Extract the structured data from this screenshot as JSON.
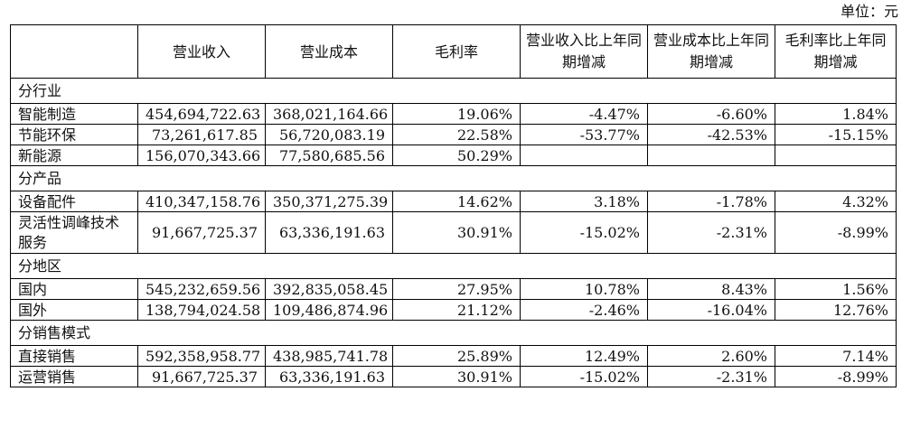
{
  "unit_label": "单位：元",
  "headers": [
    "",
    "营业收入",
    "营业成本",
    "毛利率",
    "营业收入比上年同期增减",
    "营业成本比上年同期增减",
    "毛利率比上年同期增减"
  ],
  "sections": [
    {
      "title": "分行业",
      "rows": [
        {
          "label": "智能制造",
          "values": [
            "454,694,722.63",
            "368,021,164.66",
            "19.06%",
            "-4.47%",
            "-6.60%",
            "1.84%"
          ]
        },
        {
          "label": "节能环保",
          "values": [
            "73,261,617.85",
            "56,720,083.19",
            "22.58%",
            "-53.77%",
            "-42.53%",
            "-15.15%"
          ]
        },
        {
          "label": "新能源",
          "values": [
            "156,070,343.66",
            "77,580,685.56",
            "50.29%",
            "",
            "",
            ""
          ]
        }
      ]
    },
    {
      "title": "分产品",
      "rows": [
        {
          "label": "设备配件",
          "values": [
            "410,347,158.76",
            "350,371,275.39",
            "14.62%",
            "3.18%",
            "-1.78%",
            "4.32%"
          ]
        },
        {
          "label": "灵活性调峰技术服务",
          "values": [
            "91,667,725.37",
            "63,336,191.63",
            "30.91%",
            "-15.02%",
            "-2.31%",
            "-8.99%"
          ],
          "tall": true
        }
      ]
    },
    {
      "title": "分地区",
      "rows": [
        {
          "label": "国内",
          "values": [
            "545,232,659.56",
            "392,835,058.45",
            "27.95%",
            "10.78%",
            "8.43%",
            "1.56%"
          ]
        },
        {
          "label": "国外",
          "values": [
            "138,794,024.58",
            "109,486,874.96",
            "21.12%",
            "-2.46%",
            "-16.04%",
            "12.76%"
          ]
        }
      ]
    },
    {
      "title": "分销售模式",
      "rows": [
        {
          "label": "直接销售",
          "values": [
            "592,358,958.77",
            "438,985,741.78",
            "25.89%",
            "12.49%",
            "2.60%",
            "7.14%"
          ]
        },
        {
          "label": "运营销售",
          "values": [
            "91,667,725.37",
            "63,336,191.63",
            "30.91%",
            "-15.02%",
            "-2.31%",
            "-8.99%"
          ]
        }
      ]
    }
  ]
}
